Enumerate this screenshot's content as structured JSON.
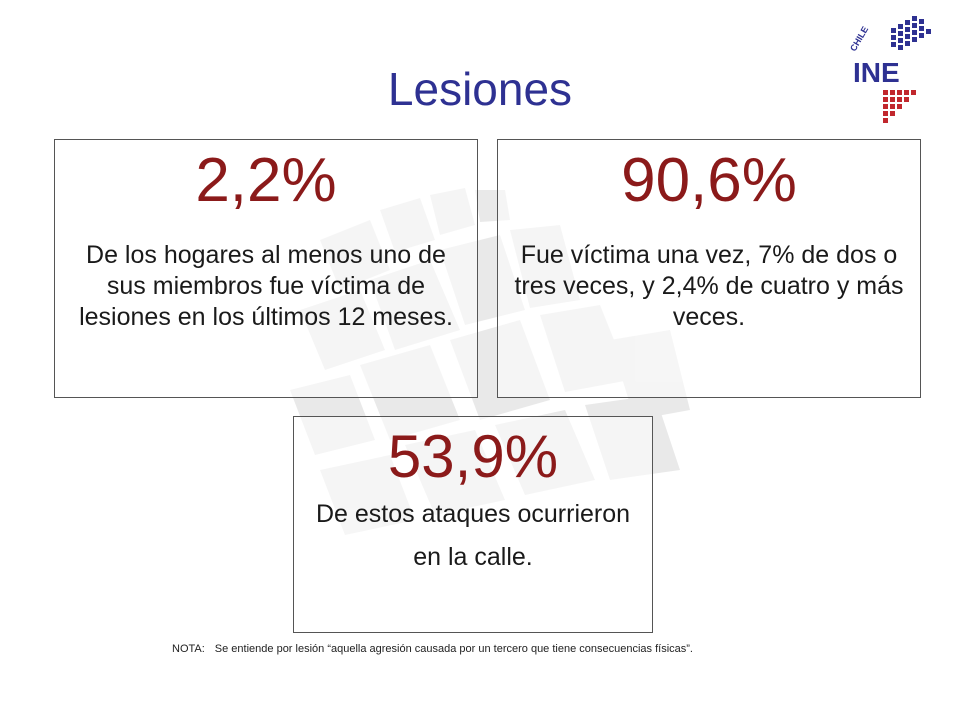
{
  "slide": {
    "title": "Lesiones"
  },
  "cards": [
    {
      "value": "2,2%",
      "text": "De los hogares al menos uno de sus miembros fue víctima de lesiones en los últimos 12 meses."
    },
    {
      "value": "90,6%",
      "text": "Fue víctima una vez, 7% de dos o tres veces, y 2,4% de cuatro y más veces."
    },
    {
      "value": "53,9%",
      "text_line1": "De estos ataques ocurrieron",
      "text_line2": "en la calle."
    }
  ],
  "note": {
    "label": "NOTA:",
    "text": "Se entiende por lesión “aquella agresión causada por un tercero que tiene consecuencias físicas”."
  },
  "logo": {
    "country": "CHILE",
    "name": "INE"
  },
  "colors": {
    "title": "#2e3192",
    "value": "#8b1a1a",
    "logo_blue": "#2e3192",
    "logo_red": "#c1272d"
  }
}
